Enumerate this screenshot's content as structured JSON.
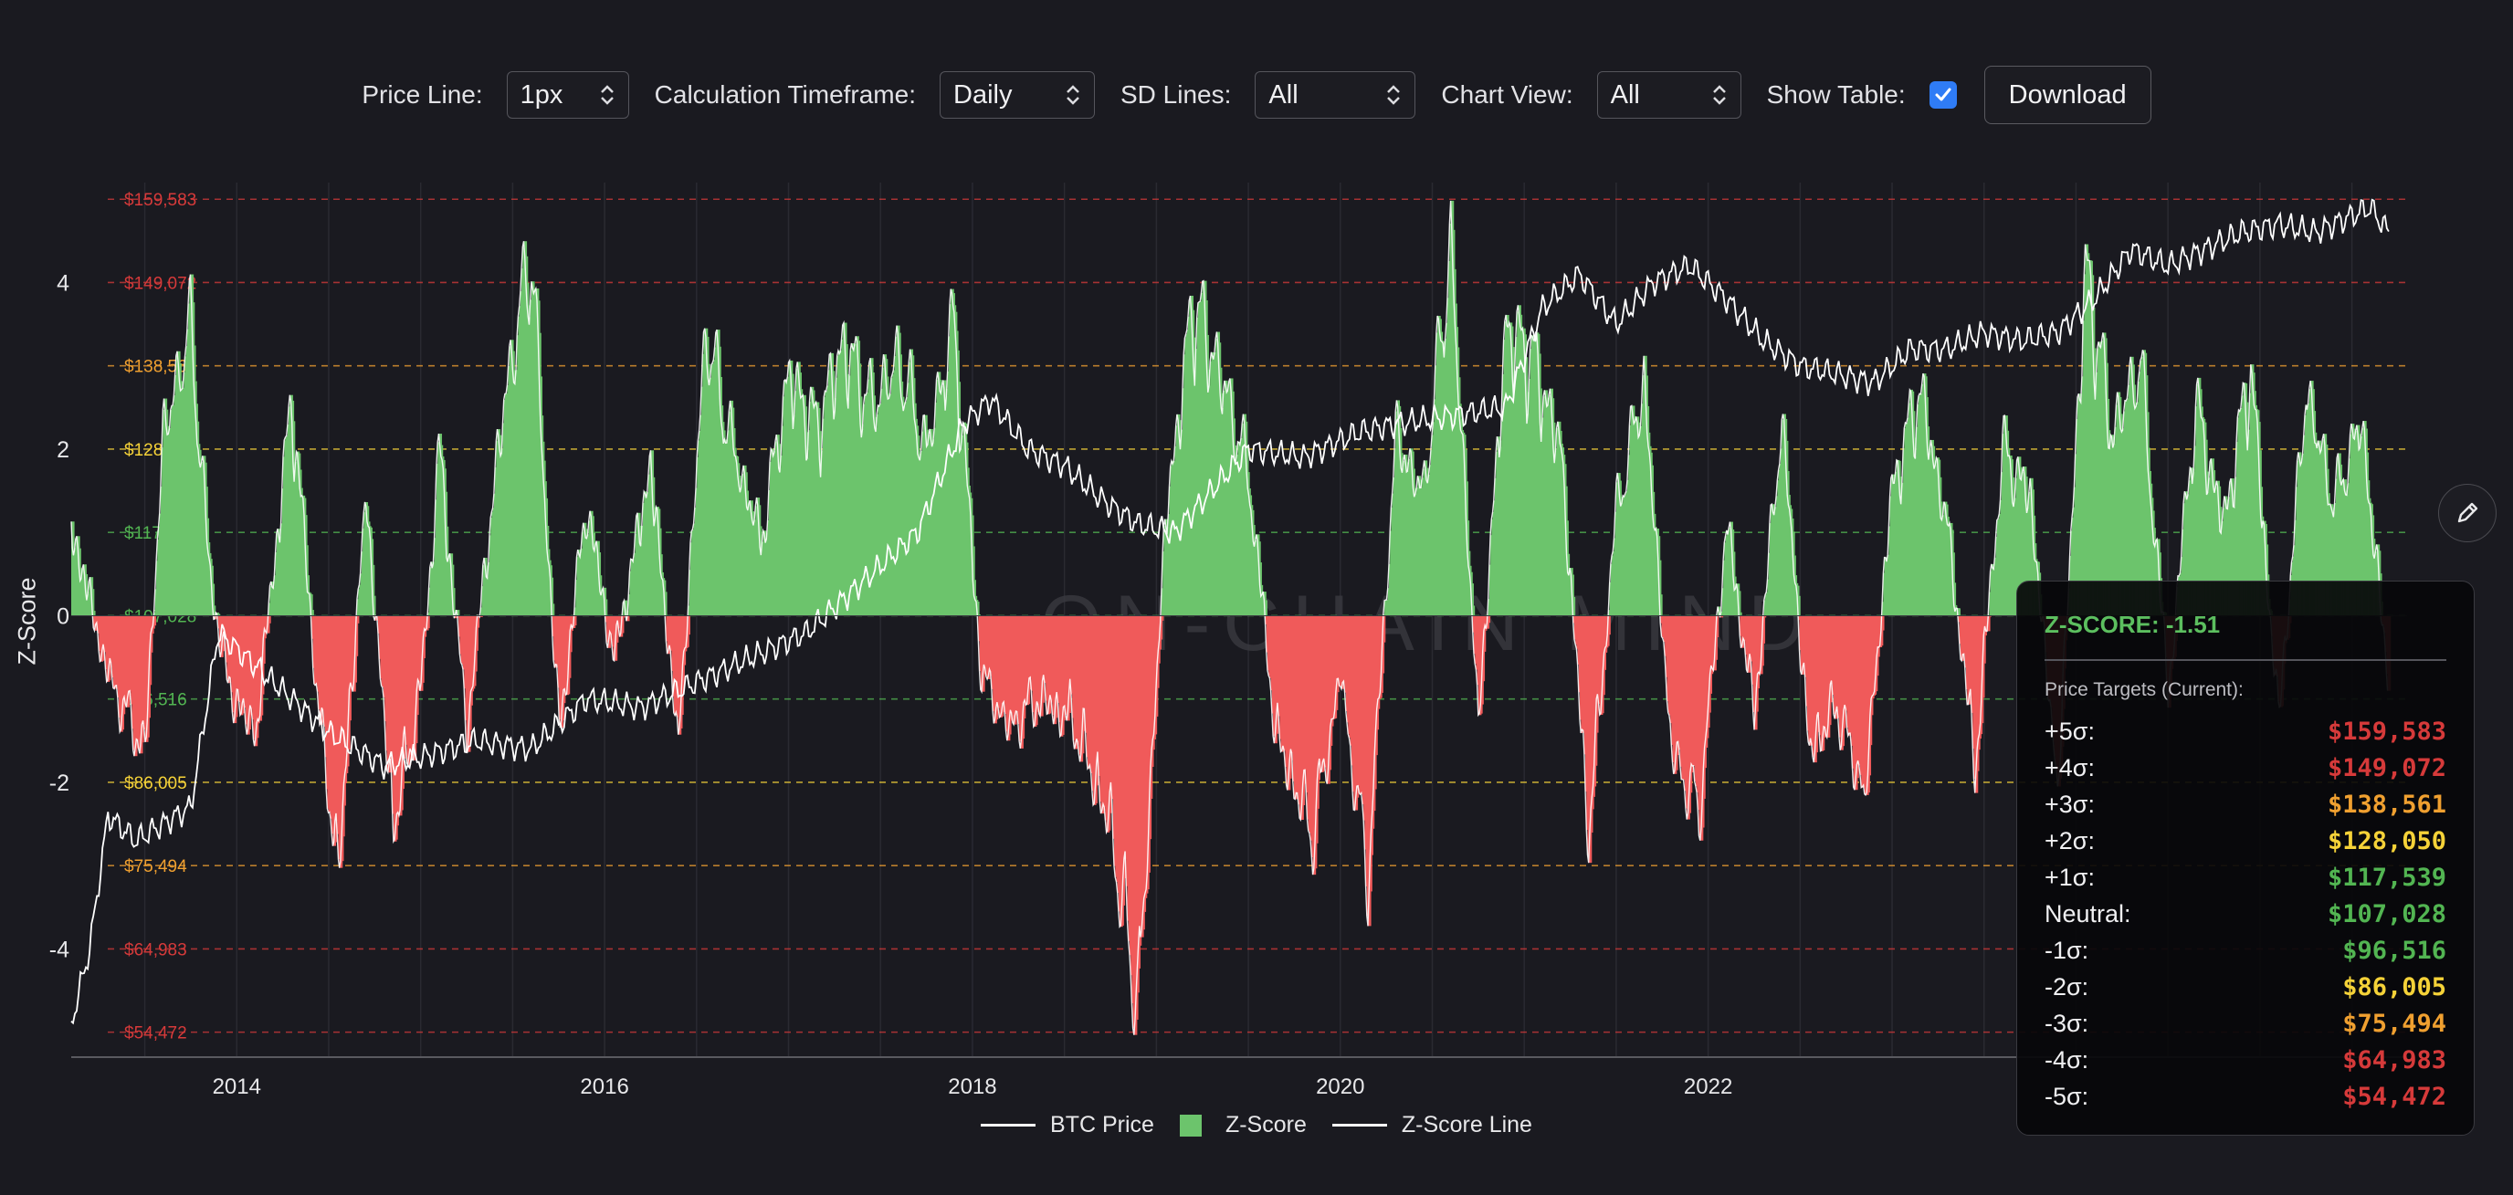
{
  "controls": {
    "price_line_label": "Price Line:",
    "price_line_value": "1px",
    "timeframe_label": "Calculation Timeframe:",
    "timeframe_value": "Daily",
    "sd_lines_label": "SD Lines:",
    "sd_lines_value": "All",
    "chart_view_label": "Chart View:",
    "chart_view_value": "All",
    "show_table_label": "Show Table:",
    "show_table_checked": true,
    "download_label": "Download"
  },
  "colors": {
    "positive": "#6cc46c",
    "negative": "#f05a5a",
    "line": "#ffffff",
    "checkbox": "#2f7cf6"
  },
  "watermark": "ON-CHAIN MIND",
  "chart_data": {
    "type": "area",
    "ylabel": "Z-Score",
    "ylim": [
      -5.3,
      5.2
    ],
    "y_ticks": [
      4,
      2,
      0,
      -2,
      -4
    ],
    "x_ticks": [
      "2014",
      "2016",
      "2018",
      "2020",
      "2022"
    ],
    "xlim": [
      2013.1,
      2025.8
    ],
    "sd_levels": [
      {
        "z": 5,
        "label": "$159,583",
        "color": "#d63a3a"
      },
      {
        "z": 4,
        "label": "$149,072",
        "color": "#d63a3a"
      },
      {
        "z": 3,
        "label": "$138,561",
        "color": "#f0a030"
      },
      {
        "z": 2,
        "label": "$128,050",
        "color": "#f5d238"
      },
      {
        "z": 1,
        "label": "$117,539",
        "color": "#52b552"
      },
      {
        "z": 0,
        "label": "$107,028",
        "color": "#52b552"
      },
      {
        "z": -1,
        "label": "$96,516",
        "color": "#52b552"
      },
      {
        "z": -2,
        "label": "$86,005",
        "color": "#f5d238"
      },
      {
        "z": -3,
        "label": "$75,494",
        "color": "#f0a030"
      },
      {
        "z": -4,
        "label": "$64,983",
        "color": "#d63a3a"
      },
      {
        "z": -5,
        "label": "$54,472",
        "color": "#d63a3a"
      }
    ],
    "zscore_series": {
      "name": "Z-Score",
      "x": [
        2013.1,
        2013.3,
        2013.5,
        2013.6,
        2013.75,
        2013.85,
        2013.95,
        2014.1,
        2014.3,
        2014.45,
        2014.55,
        2014.7,
        2014.85,
        2015.0,
        2015.1,
        2015.25,
        2015.45,
        2015.6,
        2015.75,
        2015.9,
        2016.05,
        2016.25,
        2016.4,
        2016.55,
        2016.7,
        2016.85,
        2017.0,
        2017.15,
        2017.3,
        2017.45,
        2017.6,
        2017.75,
        2017.9,
        2018.05,
        2018.2,
        2018.35,
        2018.55,
        2018.75,
        2018.9,
        2019.05,
        2019.2,
        2019.35,
        2019.5,
        2019.65,
        2019.85,
        2020.0,
        2020.15,
        2020.3,
        2020.45,
        2020.6,
        2020.75,
        2020.9,
        2021.05,
        2021.2,
        2021.35,
        2021.5,
        2021.65,
        2021.8,
        2021.95,
        2022.1,
        2022.25,
        2022.4,
        2022.55,
        2022.7,
        2022.85,
        2023.0,
        2023.15,
        2023.3,
        2023.45,
        2023.6,
        2023.75,
        2023.9,
        2024.05,
        2024.2,
        2024.35,
        2024.5,
        2024.65,
        2024.8,
        2024.95,
        2025.1,
        2025.25,
        2025.4,
        2025.55,
        2025.7
      ],
      "values": [
        1.2,
        -0.8,
        -1.8,
        2.4,
        3.9,
        0.6,
        -0.9,
        -1.6,
        2.9,
        -1.4,
        -3.4,
        1.6,
        -2.8,
        -1.0,
        2.2,
        -1.5,
        2.8,
        4.9,
        -1.6,
        1.5,
        -0.6,
        2.0,
        -1.7,
        3.8,
        2.2,
        1.0,
        3.2,
        2.5,
        3.6,
        2.8,
        3.4,
        2.2,
        3.9,
        -0.8,
        -1.5,
        -1.1,
        -1.4,
        -2.8,
        -5.2,
        1.3,
        4.2,
        3.2,
        1.9,
        -1.6,
        -2.9,
        -0.8,
        -3.5,
        2.4,
        1.6,
        4.9,
        -1.4,
        3.8,
        3.4,
        2.2,
        -2.9,
        1.4,
        3.1,
        -1.8,
        -2.6,
        1.2,
        -1.3,
        2.6,
        -1.8,
        -1.2,
        -2.4,
        1.7,
        3.0,
        1.2,
        -2.0,
        2.2,
        1.6,
        -2.3,
        4.6,
        2.4,
        3.4,
        -1.0,
        2.8,
        1.2,
        3.3,
        -1.4,
        3.0,
        1.5,
        2.6,
        -0.9
      ]
    },
    "price_series": {
      "name": "BTC Price",
      "x": [
        2013.1,
        2013.2,
        2013.3,
        2013.45,
        2013.6,
        2013.75,
        2013.9,
        2014.0,
        2014.2,
        2014.5,
        2014.8,
        2015.0,
        2015.3,
        2015.6,
        2015.9,
        2016.2,
        2016.5,
        2016.8,
        2017.1,
        2017.4,
        2017.7,
        2017.95,
        2018.1,
        2018.3,
        2018.5,
        2018.7,
        2018.9,
        2019.1,
        2019.3,
        2019.5,
        2019.8,
        2020.1,
        2020.3,
        2020.6,
        2020.9,
        2021.1,
        2021.3,
        2021.5,
        2021.7,
        2021.9,
        2022.1,
        2022.3,
        2022.5,
        2022.7,
        2022.9,
        2023.1,
        2023.3,
        2023.5,
        2023.7,
        2023.9,
        2024.1,
        2024.3,
        2024.5,
        2024.7,
        2024.9,
        2025.1,
        2025.3,
        2025.5,
        2025.6,
        2025.7
      ],
      "z_equiv": [
        -4.9,
        -4.0,
        -2.4,
        -2.7,
        -2.5,
        -2.3,
        -0.2,
        -0.4,
        -0.8,
        -1.4,
        -1.8,
        -1.7,
        -1.5,
        -1.6,
        -1.0,
        -1.1,
        -0.8,
        -0.5,
        -0.2,
        0.4,
        1.0,
        2.3,
        2.6,
        2.0,
        1.8,
        1.4,
        1.1,
        1.0,
        1.5,
        2.0,
        1.9,
        2.2,
        2.3,
        2.4,
        2.5,
        3.7,
        4.1,
        3.5,
        4.0,
        4.2,
        3.8,
        3.3,
        3.0,
        2.9,
        2.8,
        3.2,
        3.2,
        3.4,
        3.3,
        3.4,
        3.8,
        4.4,
        4.2,
        4.4,
        4.6,
        4.7,
        4.6,
        4.8,
        4.9,
        4.6
      ]
    },
    "legend": [
      "BTC Price",
      "Z-Score",
      "Z-Score Line"
    ]
  },
  "panel": {
    "title": "Z-SCORE: -1.51",
    "subtitle": "Price Targets (Current):",
    "rows": [
      {
        "label": "+5σ:",
        "value": "$159,583",
        "color": "#d63a3a"
      },
      {
        "label": "+4σ:",
        "value": "$149,072",
        "color": "#d63a3a"
      },
      {
        "label": "+3σ:",
        "value": "$138,561",
        "color": "#f0a030"
      },
      {
        "label": "+2σ:",
        "value": "$128,050",
        "color": "#f5d238"
      },
      {
        "label": "+1σ:",
        "value": "$117,539",
        "color": "#52b552"
      },
      {
        "label": "Neutral:",
        "value": "$107,028",
        "color": "#52b552"
      },
      {
        "label": "-1σ:",
        "value": "$96,516",
        "color": "#52b552"
      },
      {
        "label": "-2σ:",
        "value": "$86,005",
        "color": "#f5d238"
      },
      {
        "label": "-3σ:",
        "value": "$75,494",
        "color": "#f0a030"
      },
      {
        "label": "-4σ:",
        "value": "$64,983",
        "color": "#d63a3a"
      },
      {
        "label": "-5σ:",
        "value": "$54,472",
        "color": "#d63a3a"
      }
    ]
  }
}
